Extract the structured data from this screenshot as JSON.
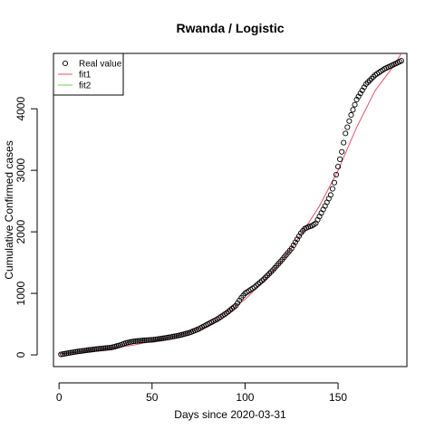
{
  "chart_data": {
    "type": "scatter",
    "title": "Rwanda / Logistic",
    "xlabel": "Days since 2020-03-31",
    "ylabel": "Cumulative Confirmed cases",
    "xlim": [
      -3,
      187
    ],
    "ylim": [
      -190,
      4900
    ],
    "xticks": [
      0,
      50,
      100,
      150
    ],
    "yticks": [
      0,
      1000,
      2000,
      3000,
      4000
    ],
    "grid": false,
    "legend_position": "top-left",
    "legend": [
      {
        "label": "Real value",
        "marker": "circle",
        "color": "#000000"
      },
      {
        "label": "fit1",
        "marker": "line",
        "color": "#DF536B"
      },
      {
        "label": "fit2",
        "marker": "line",
        "color": "#61D04F"
      }
    ],
    "series": [
      {
        "name": "Real value",
        "kind": "points",
        "color": "#000000",
        "anchors": [
          [
            1,
            8
          ],
          [
            5,
            30
          ],
          [
            10,
            55
          ],
          [
            15,
            75
          ],
          [
            20,
            95
          ],
          [
            25,
            110
          ],
          [
            28,
            120
          ],
          [
            30,
            135
          ],
          [
            33,
            160
          ],
          [
            36,
            195
          ],
          [
            40,
            220
          ],
          [
            45,
            235
          ],
          [
            50,
            245
          ],
          [
            55,
            265
          ],
          [
            60,
            290
          ],
          [
            65,
            320
          ],
          [
            70,
            360
          ],
          [
            75,
            420
          ],
          [
            80,
            500
          ],
          [
            85,
            580
          ],
          [
            90,
            680
          ],
          [
            95,
            800
          ],
          [
            98,
            930
          ],
          [
            100,
            1000
          ],
          [
            105,
            1100
          ],
          [
            110,
            1230
          ],
          [
            115,
            1380
          ],
          [
            120,
            1550
          ],
          [
            125,
            1730
          ],
          [
            128,
            1880
          ],
          [
            130,
            1980
          ],
          [
            132,
            2050
          ],
          [
            134,
            2080
          ],
          [
            136,
            2100
          ],
          [
            138,
            2140
          ],
          [
            140,
            2250
          ],
          [
            143,
            2420
          ],
          [
            146,
            2600
          ],
          [
            148,
            2800
          ],
          [
            150,
            3060
          ],
          [
            152,
            3300
          ],
          [
            154,
            3600
          ],
          [
            157,
            3900
          ],
          [
            160,
            4150
          ],
          [
            165,
            4400
          ],
          [
            170,
            4550
          ],
          [
            175,
            4650
          ],
          [
            180,
            4720
          ],
          [
            184,
            4780
          ]
        ]
      },
      {
        "name": "fit1",
        "kind": "line",
        "color": "#DF536B",
        "points": [
          [
            0,
            15
          ],
          [
            20,
            70
          ],
          [
            40,
            160
          ],
          [
            60,
            280
          ],
          [
            80,
            470
          ],
          [
            100,
            900
          ],
          [
            110,
            1200
          ],
          [
            120,
            1530
          ],
          [
            130,
            1950
          ],
          [
            140,
            2420
          ],
          [
            150,
            3000
          ],
          [
            160,
            3700
          ],
          [
            170,
            4300
          ],
          [
            180,
            4700
          ],
          [
            184,
            4900
          ]
        ]
      },
      {
        "name": "fit2",
        "kind": "line",
        "color": "#61D04F",
        "points": []
      }
    ]
  }
}
